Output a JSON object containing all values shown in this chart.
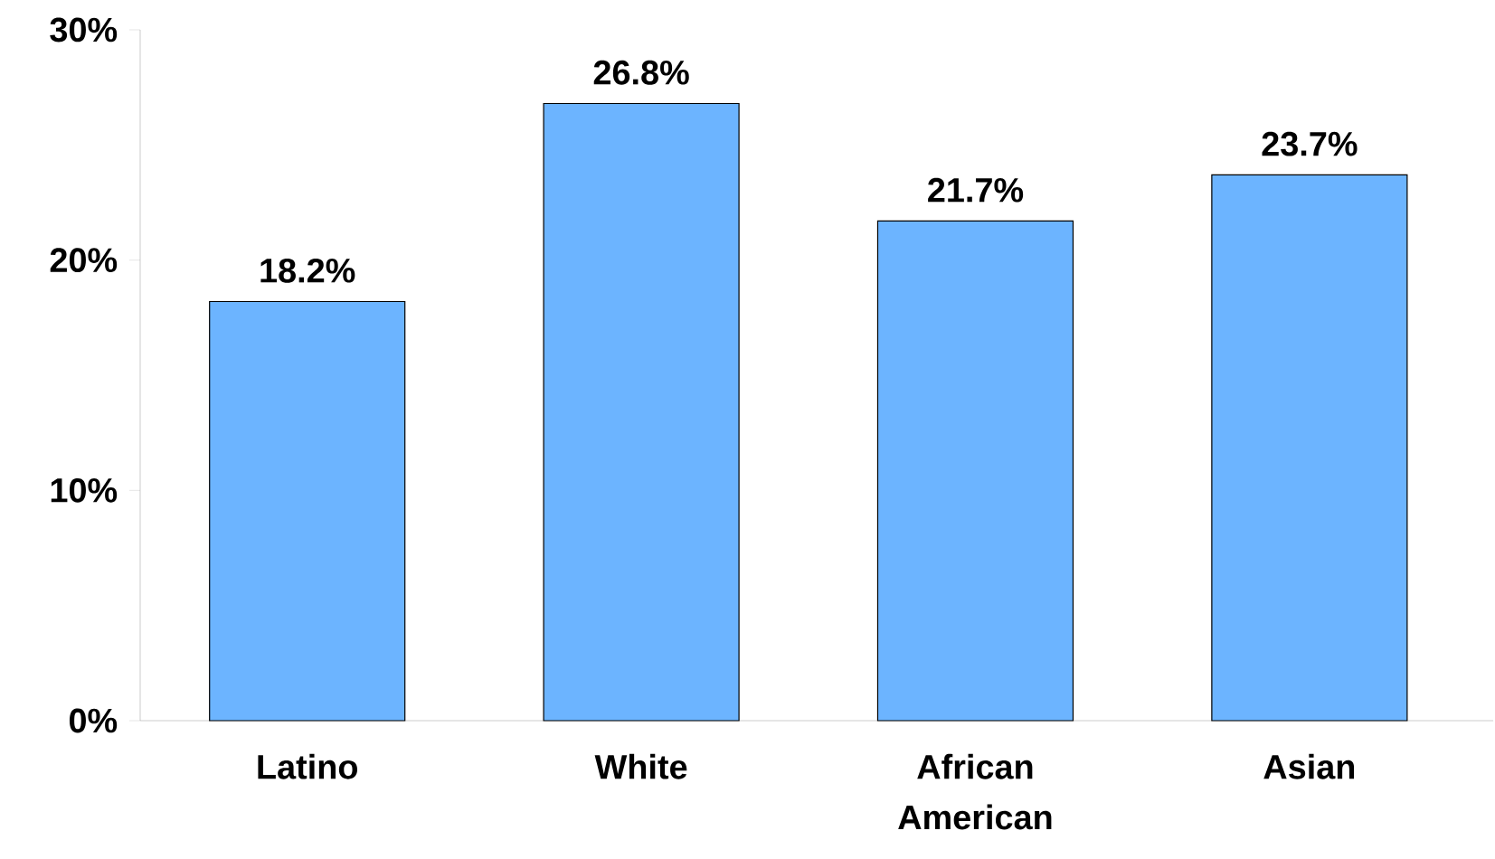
{
  "chart_data": {
    "type": "bar",
    "categories": [
      "Latino",
      "White",
      "African American",
      "Asian"
    ],
    "values": [
      18.2,
      26.8,
      21.7,
      23.7
    ],
    "value_labels": [
      "18.2%",
      "26.8%",
      "21.7%",
      "23.7%"
    ],
    "color": "#6cb4ff",
    "ylim": [
      0,
      30
    ],
    "yticks": [
      {
        "value": 0,
        "label": "0%"
      },
      {
        "value": 10,
        "label": "10%"
      },
      {
        "value": 20,
        "label": "20%"
      },
      {
        "value": 30,
        "label": "30%"
      }
    ]
  }
}
